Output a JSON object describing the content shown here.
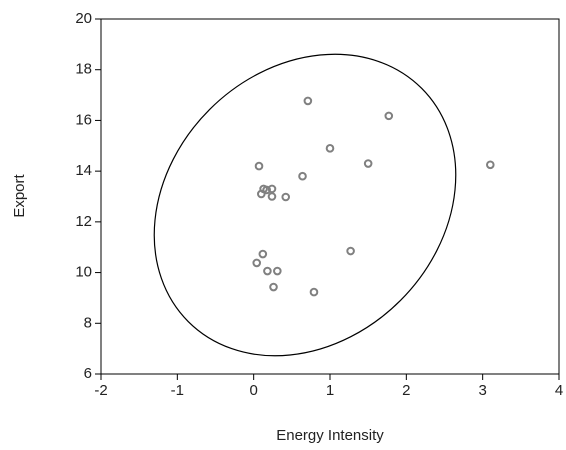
{
  "chart_data": {
    "type": "scatter",
    "x_label": "Energy Intensity",
    "y_label": "Export",
    "series": [
      {
        "name": null,
        "color": "#808080",
        "x": [
          0.07,
          0.71,
          1.77,
          1.0,
          1.5,
          3.1,
          0.64,
          0.13,
          0.24,
          0.1,
          0.24,
          0.42,
          0.17,
          0.12,
          0.04,
          0.18,
          0.31,
          0.26,
          0.79,
          1.27
        ],
        "values": [
          14.2,
          16.77,
          16.18,
          14.9,
          14.3,
          14.25,
          13.8,
          13.3,
          13.3,
          13.1,
          13.0,
          12.98,
          13.26,
          10.73,
          10.38,
          10.06,
          10.06,
          9.43,
          9.23,
          10.85
        ]
      }
    ],
    "xlim": [
      -2,
      4
    ],
    "xticks": [
      -2,
      -1,
      0,
      1,
      2,
      3,
      4
    ],
    "ylim": [
      6,
      20
    ],
    "yticks": [
      6,
      8,
      10,
      12,
      14,
      16,
      18,
      20
    ],
    "grid": false
  }
}
